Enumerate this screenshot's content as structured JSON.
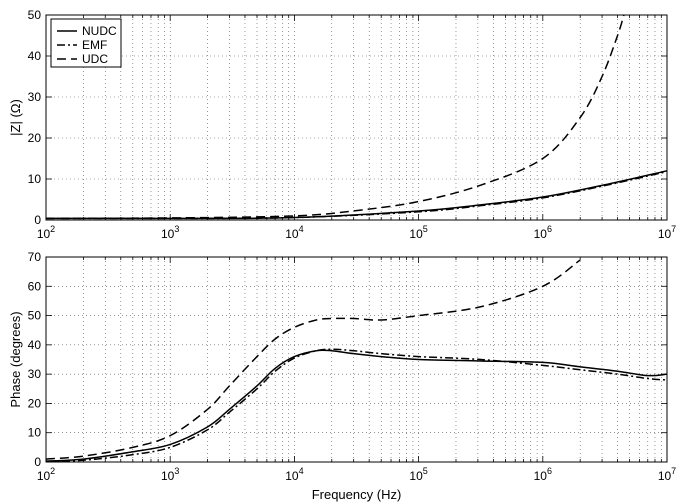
{
  "chart_data": [
    {
      "type": "line",
      "xlabel": "",
      "ylabel": "|Z| (Ω)",
      "x_scale": "log",
      "xlim": [
        100,
        10000000
      ],
      "ylim": [
        0,
        50
      ],
      "y_ticks": [
        0,
        10,
        20,
        30,
        40,
        50
      ],
      "x_ticks": [
        {
          "value": 100,
          "base": "10",
          "exp": "2"
        },
        {
          "value": 1000,
          "base": "10",
          "exp": "3"
        },
        {
          "value": 10000,
          "base": "10",
          "exp": "4"
        },
        {
          "value": 100000,
          "base": "10",
          "exp": "5"
        },
        {
          "value": 1000000,
          "base": "10",
          "exp": "6"
        },
        {
          "value": 10000000,
          "base": "10",
          "exp": "7"
        }
      ],
      "grid": true,
      "legend": {
        "placement": "top-left",
        "entries": [
          "NUDC",
          "EMF",
          "UDC"
        ]
      },
      "series": [
        {
          "name": "NUDC",
          "style": "solid",
          "x": [
            100,
            1000,
            10000,
            100000,
            316000,
            1000000,
            3160000,
            10000000
          ],
          "y": [
            0.4,
            0.4,
            0.6,
            2.2,
            3.7,
            5.6,
            8.6,
            12.0
          ]
        },
        {
          "name": "EMF",
          "style": "dashdot",
          "x": [
            100,
            1000,
            10000,
            100000,
            316000,
            1000000,
            3160000,
            10000000
          ],
          "y": [
            0.4,
            0.4,
            0.6,
            2.0,
            3.5,
            5.4,
            8.4,
            11.8
          ]
        },
        {
          "name": "UDC",
          "style": "dashed",
          "x": [
            100,
            1000,
            10000,
            31600,
            100000,
            316000,
            1000000,
            2000000,
            3000000,
            4000000,
            4500000
          ],
          "y": [
            0.4,
            0.5,
            1.0,
            2.3,
            4.5,
            8.5,
            15.0,
            25.0,
            35.0,
            45.0,
            50.0
          ]
        }
      ]
    },
    {
      "type": "line",
      "xlabel": "Frequency (Hz)",
      "ylabel": "Phase (degrees)",
      "x_scale": "log",
      "xlim": [
        100,
        10000000
      ],
      "ylim": [
        0,
        70
      ],
      "y_ticks": [
        0,
        10,
        20,
        30,
        40,
        50,
        60,
        70
      ],
      "x_ticks": [
        {
          "value": 100,
          "base": "10",
          "exp": "2"
        },
        {
          "value": 1000,
          "base": "10",
          "exp": "3"
        },
        {
          "value": 10000,
          "base": "10",
          "exp": "4"
        },
        {
          "value": 100000,
          "base": "10",
          "exp": "5"
        },
        {
          "value": 1000000,
          "base": "10",
          "exp": "6"
        },
        {
          "value": 10000000,
          "base": "10",
          "exp": "7"
        }
      ],
      "grid": true,
      "series": [
        {
          "name": "NUDC",
          "style": "solid",
          "x": [
            100,
            200,
            500,
            1000,
            2000,
            3000,
            5000,
            7000,
            10000,
            15000,
            20000,
            30000,
            50000,
            100000,
            316000,
            1000000,
            2000000,
            4000000,
            7000000,
            10000000
          ],
          "y": [
            0.3,
            1.0,
            3.5,
            6.0,
            12.0,
            18.0,
            26.0,
            32.0,
            36.0,
            38.0,
            38.0,
            37.0,
            36.0,
            35.0,
            34.5,
            34.0,
            32.5,
            31.0,
            29.5,
            30.0
          ]
        },
        {
          "name": "EMF",
          "style": "dashdot",
          "x": [
            100,
            200,
            500,
            1000,
            2000,
            3000,
            5000,
            7000,
            10000,
            15000,
            20000,
            30000,
            50000,
            100000,
            316000,
            1000000,
            2000000,
            4000000,
            7000000,
            10000000
          ],
          "y": [
            0.3,
            0.6,
            2.5,
            5.0,
            11.0,
            17.0,
            25.0,
            31.0,
            35.5,
            38.0,
            38.5,
            38.0,
            37.0,
            36.0,
            35.0,
            33.0,
            31.5,
            30.0,
            28.5,
            28.0
          ]
        },
        {
          "name": "UDC",
          "style": "dashed",
          "x": [
            100,
            200,
            500,
            1000,
            2000,
            3000,
            5000,
            7000,
            10000,
            15000,
            20000,
            30000,
            50000,
            100000,
            316000,
            1000000,
            2000000
          ],
          "y": [
            1.0,
            2.0,
            5.0,
            9.0,
            18.0,
            26.0,
            36.0,
            42.0,
            46.0,
            48.5,
            49.0,
            49.0,
            48.5,
            50.0,
            53.0,
            60.0,
            69.0
          ]
        }
      ]
    }
  ]
}
